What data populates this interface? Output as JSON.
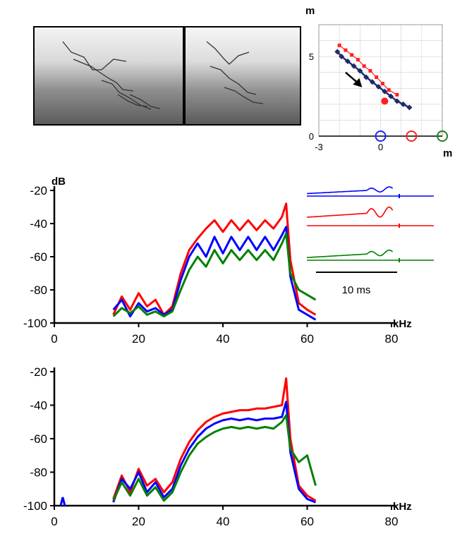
{
  "chart_data": [
    {
      "type": "scatter",
      "x_unit": "m",
      "y_unit": "m",
      "xlim": [
        -3,
        3
      ],
      "ylim": [
        0,
        7
      ],
      "x_ticks": [
        "-3",
        "0"
      ],
      "y_ticks": [
        "0",
        "5"
      ],
      "grid": true,
      "series": [
        {
          "color": "#1f2a6b",
          "marker": "diamond",
          "x": [
            -2.1,
            -1.9,
            -1.6,
            -1.3,
            -1.0,
            -0.7,
            -0.4,
            -0.1,
            0.2,
            0.5,
            0.8,
            1.1,
            1.4
          ],
          "y": [
            5.3,
            5.0,
            4.7,
            4.4,
            4.1,
            3.7,
            3.4,
            3.1,
            2.8,
            2.5,
            2.2,
            2.0,
            1.8
          ]
        },
        {
          "color": "#ff2020",
          "marker": "square",
          "x": [
            -2.0,
            -1.7,
            -1.4,
            -1.1,
            -0.8,
            -0.5,
            -0.2,
            0.1,
            0.4,
            0.8
          ],
          "y": [
            5.7,
            5.4,
            5.1,
            4.8,
            4.4,
            4.1,
            3.7,
            3.3,
            2.9,
            2.6
          ]
        }
      ],
      "highlight_point": {
        "x": 0.2,
        "y": 2.2,
        "color": "#ff2020"
      },
      "receivers": [
        {
          "x": 0.0,
          "color": "#2020ff"
        },
        {
          "x": 1.5,
          "color": "#ff2020"
        },
        {
          "x": 3.0,
          "color": "#208020"
        }
      ],
      "arrow": {
        "from": [
          -1.7,
          4.0
        ],
        "to": [
          -1.0,
          3.2
        ]
      }
    },
    {
      "type": "line",
      "y_unit": "dB",
      "x_unit": "kHz",
      "xlim": [
        0,
        80
      ],
      "ylim": [
        -100,
        -20
      ],
      "x_ticks": [
        "0",
        "20",
        "40",
        "60",
        "80"
      ],
      "y_ticks": [
        "-20",
        "-40",
        "-60",
        "-80",
        "-100"
      ],
      "series": [
        {
          "color": "#ff0000",
          "x": [
            14,
            16,
            18,
            20,
            22,
            24,
            26,
            28,
            30,
            32,
            34,
            36,
            38,
            40,
            42,
            44,
            46,
            48,
            50,
            52,
            54,
            55,
            56,
            58,
            60,
            62
          ],
          "y": [
            -95,
            -84,
            -92,
            -82,
            -90,
            -86,
            -95,
            -90,
            -70,
            -56,
            -49,
            -43,
            -38,
            -45,
            -38,
            -44,
            -38,
            -44,
            -38,
            -43,
            -36,
            -28,
            -62,
            -88,
            -92,
            -95
          ]
        },
        {
          "color": "#0000ff",
          "x": [
            14,
            16,
            18,
            20,
            22,
            24,
            26,
            28,
            30,
            32,
            34,
            36,
            38,
            40,
            42,
            44,
            46,
            48,
            50,
            52,
            54,
            55,
            56,
            58,
            60,
            62
          ],
          "y": [
            -92,
            -86,
            -96,
            -88,
            -93,
            -91,
            -95,
            -92,
            -74,
            -60,
            -52,
            -60,
            -48,
            -58,
            -48,
            -56,
            -48,
            -56,
            -48,
            -56,
            -47,
            -42,
            -72,
            -92,
            -95,
            -98
          ]
        },
        {
          "color": "#008000",
          "x": [
            14,
            16,
            18,
            20,
            22,
            24,
            26,
            28,
            30,
            32,
            34,
            36,
            38,
            40,
            42,
            44,
            46,
            48,
            50,
            52,
            54,
            55,
            56,
            58,
            60,
            62
          ],
          "y": [
            -96,
            -91,
            -94,
            -90,
            -95,
            -93,
            -96,
            -93,
            -80,
            -68,
            -60,
            -66,
            -56,
            -64,
            -56,
            -62,
            -56,
            -62,
            -56,
            -62,
            -52,
            -46,
            -70,
            -80,
            -83,
            -86
          ]
        }
      ],
      "inset_scale_label": "10 ms",
      "waveform_colors": [
        "#0000ff",
        "#ff0000",
        "#008000"
      ]
    },
    {
      "type": "line",
      "x_unit": "kHz",
      "xlim": [
        0,
        80
      ],
      "ylim": [
        -100,
        -20
      ],
      "x_ticks": [
        "0",
        "20",
        "40",
        "60",
        "80"
      ],
      "y_ticks": [
        "-20",
        "-40",
        "-60",
        "-80",
        "-100"
      ],
      "series": [
        {
          "color": "#ff0000",
          "x": [
            14,
            16,
            18,
            20,
            22,
            24,
            26,
            28,
            30,
            32,
            34,
            36,
            38,
            40,
            42,
            44,
            46,
            48,
            50,
            52,
            54,
            55,
            56,
            58,
            60,
            62
          ],
          "y": [
            -96,
            -82,
            -92,
            -78,
            -88,
            -84,
            -92,
            -86,
            -72,
            -62,
            -55,
            -50,
            -47,
            -45,
            -44,
            -43,
            -43,
            -42,
            -42,
            -41,
            -40,
            -24,
            -60,
            -88,
            -94,
            -97
          ]
        },
        {
          "color": "#0000ff",
          "x": [
            14,
            16,
            18,
            20,
            22,
            24,
            26,
            28,
            30,
            32,
            34,
            36,
            38,
            40,
            42,
            44,
            46,
            48,
            50,
            52,
            54,
            55,
            56,
            58,
            60,
            62
          ],
          "y": [
            -98,
            -84,
            -90,
            -80,
            -92,
            -86,
            -95,
            -90,
            -76,
            -66,
            -59,
            -54,
            -51,
            -49,
            -48,
            -49,
            -48,
            -49,
            -48,
            -48,
            -47,
            -38,
            -68,
            -90,
            -96,
            -98
          ]
        },
        {
          "color": "#008000",
          "x": [
            14,
            16,
            18,
            20,
            22,
            24,
            26,
            28,
            30,
            32,
            34,
            36,
            38,
            40,
            42,
            44,
            46,
            48,
            50,
            52,
            54,
            55,
            56,
            58,
            60,
            62
          ],
          "y": [
            -97,
            -86,
            -94,
            -84,
            -94,
            -89,
            -97,
            -92,
            -80,
            -70,
            -63,
            -59,
            -56,
            -54,
            -53,
            -54,
            -53,
            -54,
            -53,
            -54,
            -50,
            -46,
            -66,
            -74,
            -70,
            -88
          ]
        }
      ]
    }
  ]
}
